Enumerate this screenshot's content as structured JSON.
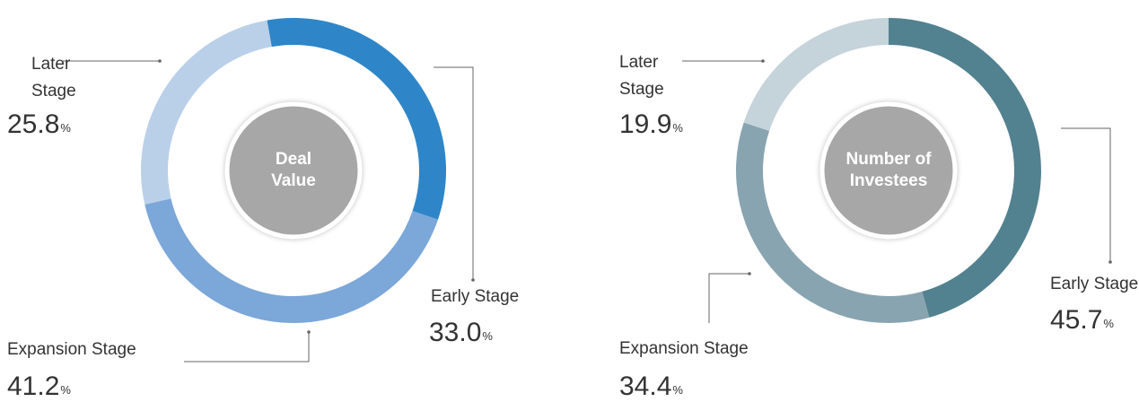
{
  "chart_data": [
    {
      "type": "pie",
      "center_label": [
        "Deal",
        "Value"
      ],
      "unit": "%",
      "categories": [
        "Early Stage",
        "Expansion Stage",
        "Later Stage"
      ],
      "values": [
        33,
        41.2,
        25.8
      ],
      "value_labels": [
        "33.0",
        "41.2",
        "25.8"
      ],
      "colors": [
        "#2e86c8",
        "#7ba7d9",
        "#b9d0e8"
      ]
    },
    {
      "type": "pie",
      "center_label": [
        "Number of",
        "Investees"
      ],
      "unit": "%",
      "categories": [
        "Early Stage",
        "Expansion Stage",
        "Later Stage"
      ],
      "values": [
        45.7,
        34.4,
        19.9
      ],
      "value_labels": [
        "45.7",
        "34.4",
        "19.9"
      ],
      "colors": [
        "#52818f",
        "#88a4b0",
        "#c5d3da"
      ]
    }
  ]
}
